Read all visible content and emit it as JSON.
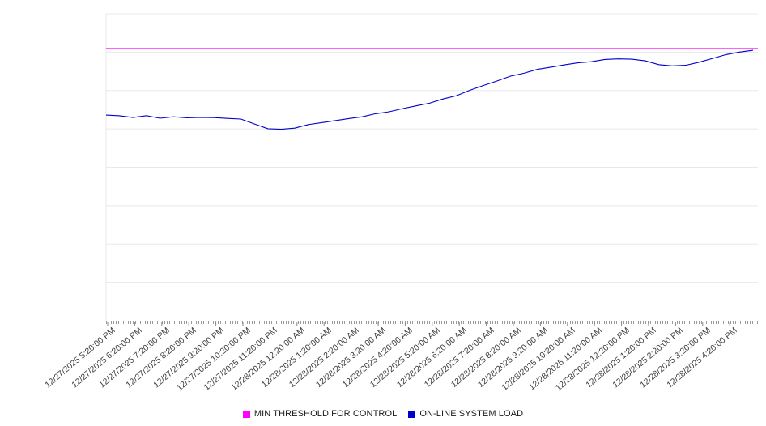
{
  "chart_data": {
    "type": "line",
    "title": "",
    "xlabel": "",
    "ylabel": "",
    "ylim": [
      0,
      100
    ],
    "y_axis_labels_visible": false,
    "grid": "horizontal",
    "legend_position": "bottom",
    "x_labels": [
      "12/27/2025 5:20:00 PM",
      "12/27/2025 6:20:00 PM",
      "12/27/2025 7:20:00 PM",
      "12/27/2025 8:20:00 PM",
      "12/27/2025 9:20:00 PM",
      "12/27/2025 10:20:00 PM",
      "12/27/2025 11:20:00 PM",
      "12/28/2025 12:20:00 AM",
      "12/28/2025 1:20:00 AM",
      "12/28/2025 2:20:00 AM",
      "12/28/2025 3:20:00 AM",
      "12/28/2025 4:20:00 AM",
      "12/28/2025 5:20:00 AM",
      "12/28/2025 6:20:00 AM",
      "12/28/2025 7:20:00 AM",
      "12/28/2025 8:20:00 AM",
      "12/28/2025 9:20:00 AM",
      "12/28/2025 10:20:00 AM",
      "12/28/2025 11:20:00 AM",
      "12/28/2025 12:20:00 PM",
      "12/28/2025 1:20:00 PM",
      "12/28/2025 2:20:00 PM",
      "12/28/2025 3:20:00 PM",
      "12/28/2025 4:20:00 PM"
    ],
    "series": [
      {
        "name": "MIN THRESHOLD FOR CONTROL",
        "type": "threshold",
        "color": "#ff00ff",
        "value": 88.6
      },
      {
        "name": "ON-LINE SYSTEM LOAD",
        "type": "line",
        "color": "#0000cd",
        "values": [
          67.0,
          66.8,
          66.5,
          66.9,
          66.3,
          66.6,
          66.2,
          66.4,
          66.0,
          65.9,
          65.4,
          63.9,
          62.4,
          62.1,
          62.8,
          63.8,
          64.7,
          65.4,
          66.0,
          66.8,
          67.5,
          68.3,
          69.1,
          69.9,
          70.8,
          71.9,
          73.2,
          74.8,
          76.5,
          78.1,
          79.6,
          80.9,
          82.0,
          82.9,
          83.6,
          84.1,
          84.6,
          85.0,
          85.3,
          85.0,
          84.4,
          83.3,
          82.7,
          83.2,
          84.1,
          85.5,
          86.9,
          87.6,
          88.1
        ]
      }
    ],
    "colors": {
      "gridline": "#e8e8e8",
      "axis": "#9a9a9a",
      "tick_text": "#404040"
    }
  }
}
